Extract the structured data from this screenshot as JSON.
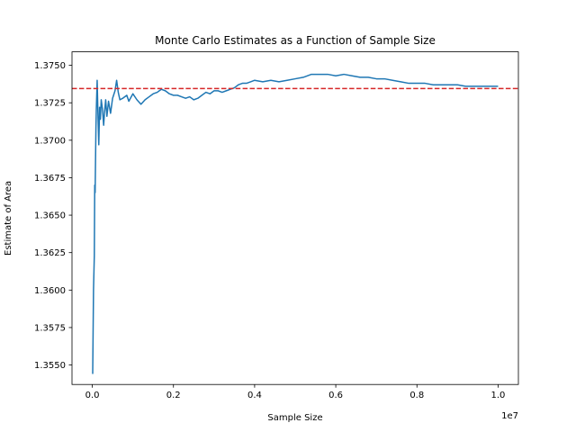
{
  "chart_data": {
    "type": "line",
    "title": "Monte Carlo Estimates as a Function of Sample Size",
    "xlabel": "Sample Size",
    "ylabel": "Estimate of Area",
    "x_offset_label": "1e7",
    "xlim": [
      -500000,
      10500000
    ],
    "ylim": [
      1.3537,
      1.3759
    ],
    "xticks": [
      0,
      2000000,
      4000000,
      6000000,
      8000000,
      10000000
    ],
    "xtick_labels": [
      "0.0",
      "0.2",
      "0.4",
      "0.6",
      "0.8",
      "1.0"
    ],
    "yticks": [
      1.355,
      1.3575,
      1.36,
      1.3625,
      1.365,
      1.3675,
      1.37,
      1.3725,
      1.375
    ],
    "ytick_labels": [
      "1.3550",
      "1.3575",
      "1.3600",
      "1.3625",
      "1.3650",
      "1.3675",
      "1.3700",
      "1.3725",
      "1.3750"
    ],
    "grid": false,
    "series": [
      {
        "color": "#1f77b4",
        "x": [
          10000,
          30000,
          50000,
          60000,
          70000,
          90000,
          100000,
          120000,
          140000,
          160000,
          180000,
          200000,
          220000,
          250000,
          280000,
          300000,
          330000,
          360000,
          400000,
          450000,
          500000,
          560000,
          600000,
          640000,
          680000,
          750000,
          850000,
          900000,
          1000000,
          1100000,
          1200000,
          1300000,
          1400000,
          1500000,
          1600000,
          1700000,
          1800000,
          1900000,
          2000000,
          2100000,
          2200000,
          2300000,
          2400000,
          2500000,
          2600000,
          2700000,
          2800000,
          2900000,
          3000000,
          3100000,
          3200000,
          3300000,
          3400000,
          3500000,
          3600000,
          3700000,
          3800000,
          3900000,
          4000000,
          4200000,
          4400000,
          4600000,
          4800000,
          5000000,
          5200000,
          5400000,
          5600000,
          5800000,
          6000000,
          6200000,
          6400000,
          6600000,
          6800000,
          7000000,
          7200000,
          7400000,
          7600000,
          7800000,
          8000000,
          8200000,
          8400000,
          8600000,
          8800000,
          9000000,
          9200000,
          9400000,
          9600000,
          9800000,
          10000000
        ],
        "y": [
          1.3544,
          1.36,
          1.3623,
          1.367,
          1.3665,
          1.3708,
          1.3721,
          1.374,
          1.3717,
          1.3697,
          1.3722,
          1.3714,
          1.3727,
          1.3721,
          1.371,
          1.3718,
          1.3727,
          1.3716,
          1.3726,
          1.3718,
          1.3728,
          1.3733,
          1.374,
          1.3732,
          1.3727,
          1.3728,
          1.373,
          1.3726,
          1.3731,
          1.3727,
          1.3724,
          1.3727,
          1.3729,
          1.3731,
          1.3732,
          1.3734,
          1.3733,
          1.3731,
          1.373,
          1.373,
          1.3729,
          1.3728,
          1.3729,
          1.3727,
          1.3728,
          1.373,
          1.3732,
          1.3731,
          1.3733,
          1.3733,
          1.3732,
          1.3733,
          1.3734,
          1.3735,
          1.3737,
          1.3738,
          1.3738,
          1.3739,
          1.374,
          1.3739,
          1.374,
          1.3739,
          1.374,
          1.3741,
          1.3742,
          1.3744,
          1.3744,
          1.3744,
          1.3743,
          1.3744,
          1.3743,
          1.3742,
          1.3742,
          1.3741,
          1.3741,
          1.374,
          1.3739,
          1.3738,
          1.3738,
          1.3738,
          1.3737,
          1.3737,
          1.3737,
          1.3737,
          1.3736,
          1.3736,
          1.3736,
          1.3736,
          1.3736
        ]
      }
    ],
    "reference_line": {
      "y": 1.37345,
      "color": "#d62728",
      "style": "dashed"
    }
  }
}
